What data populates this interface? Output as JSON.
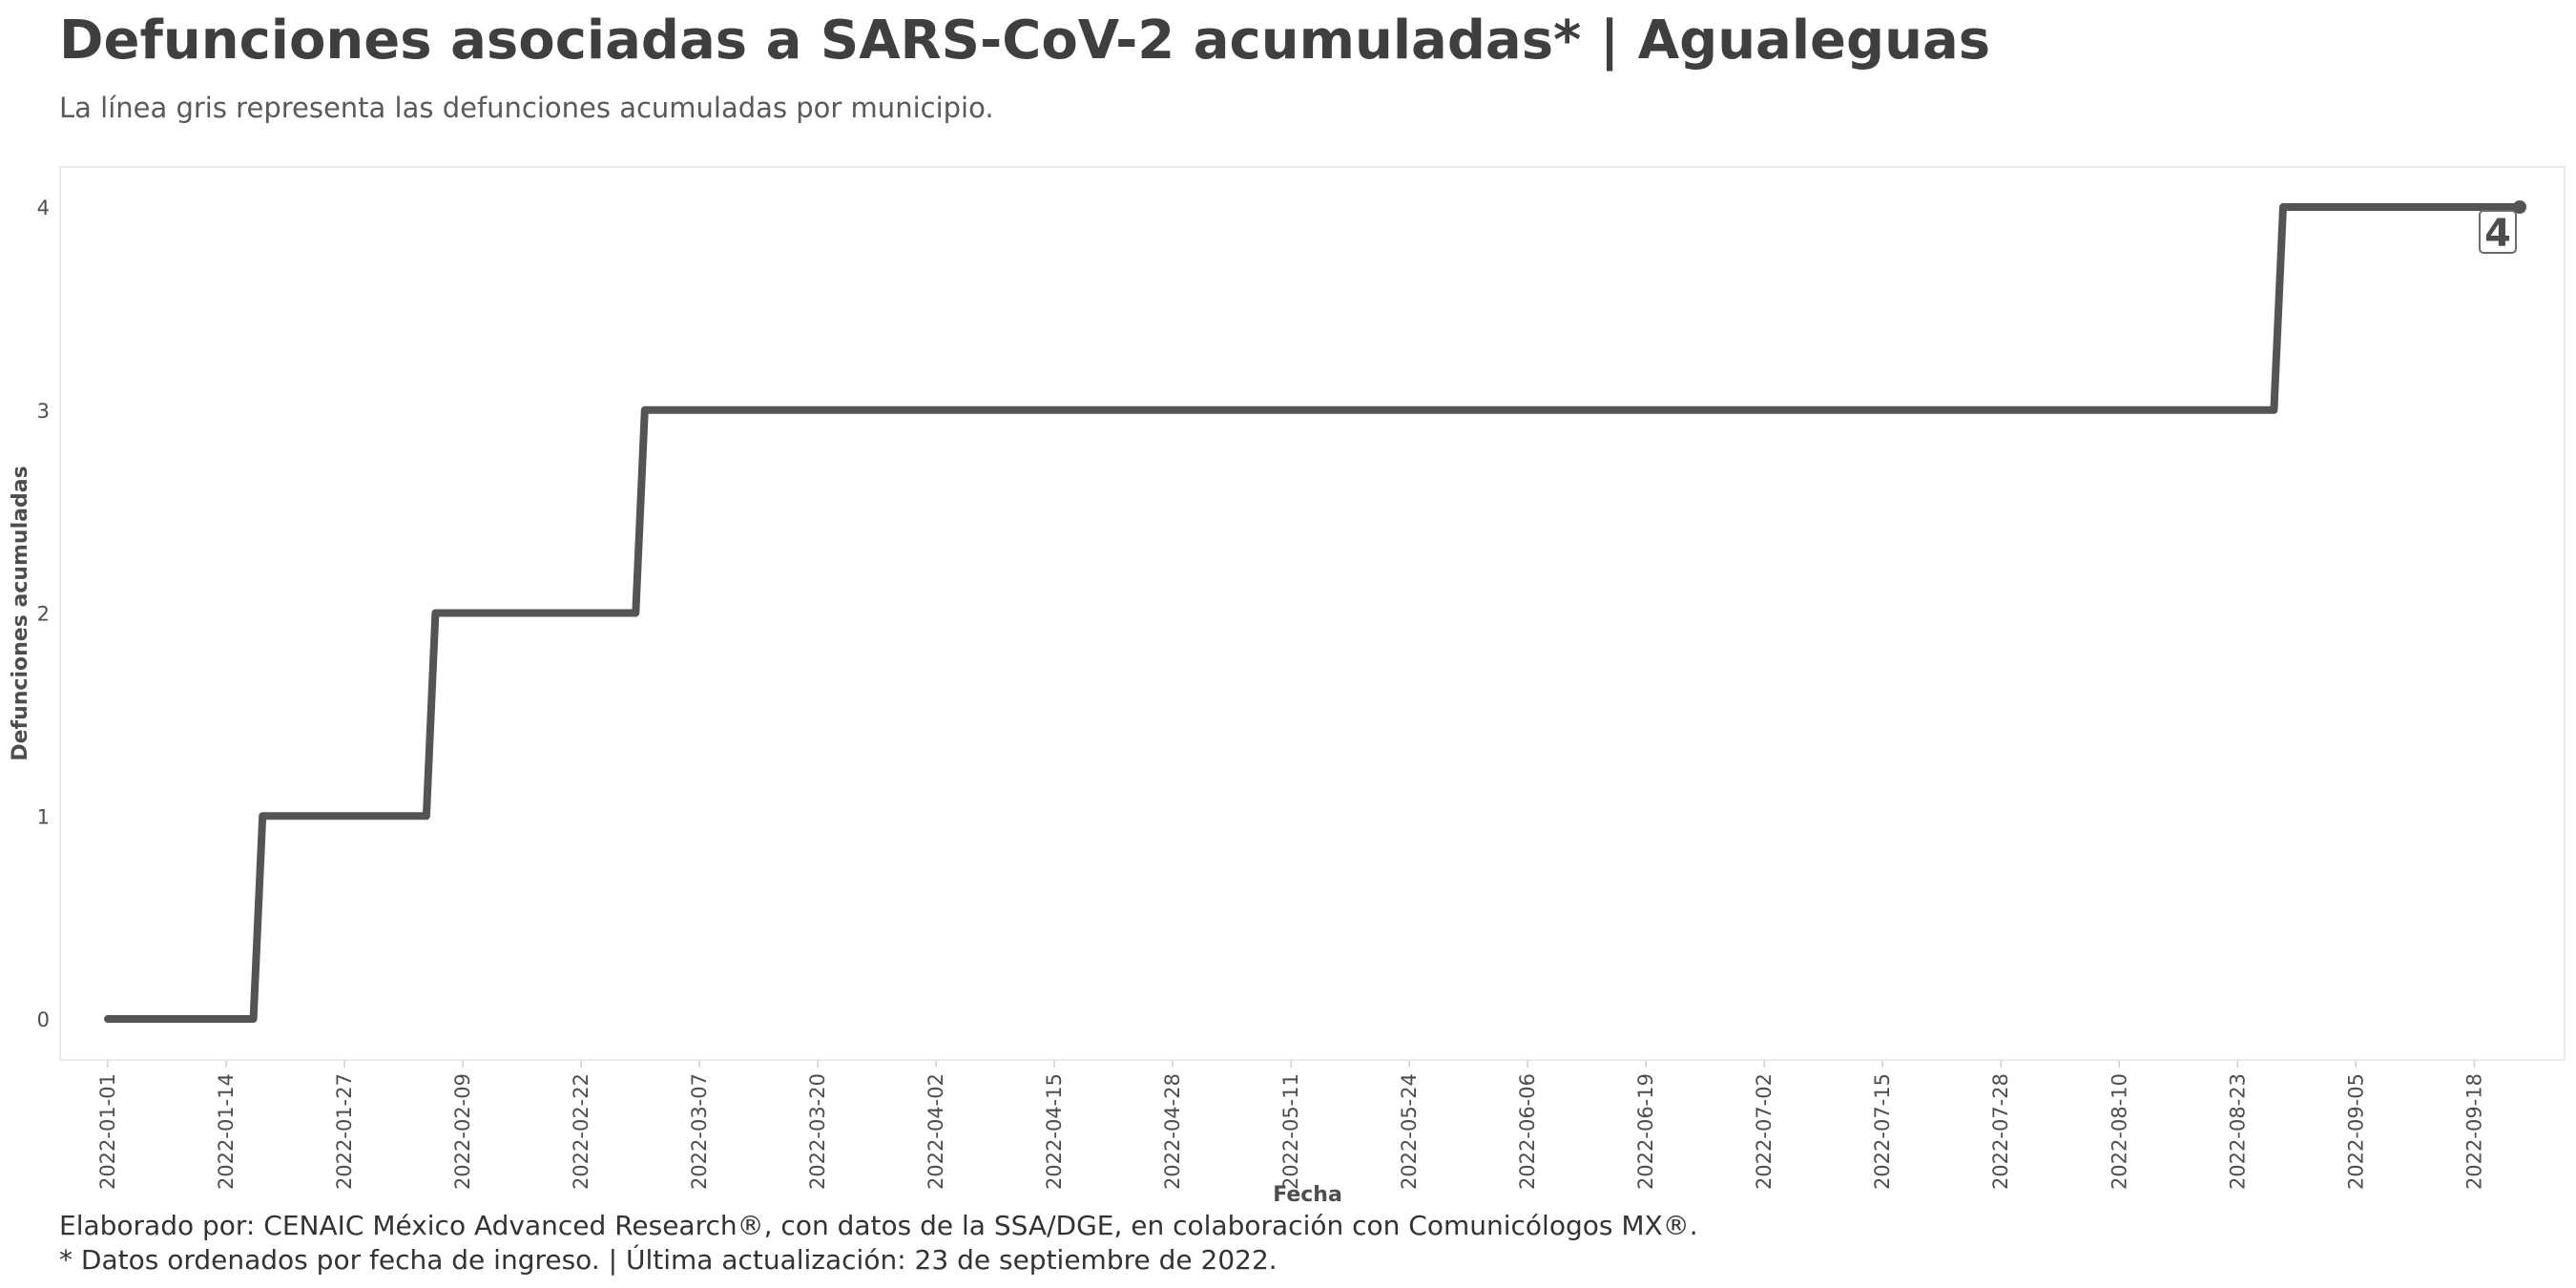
{
  "chart_data": {
    "type": "line",
    "title": "Defunciones asociadas a SARS-CoV-2 acumuladas* | Agualeguas",
    "subtitle": "La línea gris representa las defunciones acumuladas por municipio.",
    "xlabel": "Fecha",
    "ylabel": "Defunciones acumuladas",
    "ylim": [
      0,
      4
    ],
    "yticks": [
      "0",
      "1",
      "2",
      "3",
      "4"
    ],
    "xlim": [
      "2022-01-01",
      "2022-09-23"
    ],
    "xticks": [
      "2022-01-01",
      "2022-01-14",
      "2022-01-27",
      "2022-02-09",
      "2022-02-22",
      "2022-03-07",
      "2022-03-20",
      "2022-04-02",
      "2022-04-15",
      "2022-04-28",
      "2022-05-11",
      "2022-05-24",
      "2022-06-06",
      "2022-06-19",
      "2022-07-02",
      "2022-07-15",
      "2022-07-28",
      "2022-08-10",
      "2022-08-23",
      "2022-09-05",
      "2022-09-18"
    ],
    "grid": false,
    "line_color": "#545454",
    "series": [
      {
        "x": [
          "2022-01-01",
          "2022-01-17",
          "2022-01-18",
          "2022-02-05",
          "2022-02-06",
          "2022-02-28",
          "2022-03-01",
          "2022-08-27",
          "2022-08-28",
          "2022-09-23"
        ],
        "values": [
          0,
          0,
          1,
          1,
          2,
          2,
          3,
          3,
          4,
          4
        ]
      }
    ],
    "end_label": "4"
  },
  "captions": {
    "line1": "Elaborado por: CENAIC México Advanced Research®, con datos de la SSA/DGE, en colaboración con Comunicólogos MX®.",
    "line2": "* Datos ordenados por fecha de ingreso. | Última actualización: 23 de septiembre de 2022."
  }
}
